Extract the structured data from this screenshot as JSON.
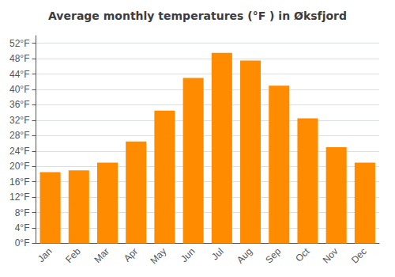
{
  "chart_data": {
    "type": "bar",
    "title": "Average monthly temperatures (°F ) in Øksfjord",
    "categories": [
      "Jan",
      "Feb",
      "Mar",
      "Apr",
      "May",
      "Jun",
      "Jul",
      "Aug",
      "Sep",
      "Oct",
      "Nov",
      "Dec"
    ],
    "values": [
      18.5,
      19.0,
      21.0,
      26.5,
      34.5,
      43.0,
      49.5,
      47.5,
      41.0,
      32.5,
      25.0,
      21.0
    ],
    "color": "#FF8C00",
    "ylim": [
      0,
      54
    ],
    "yticks": [
      {
        "value": 0,
        "label": "0°F"
      },
      {
        "value": 4,
        "label": "4°F"
      },
      {
        "value": 8,
        "label": "8°F"
      },
      {
        "value": 12,
        "label": "12°F"
      },
      {
        "value": 16,
        "label": "16°F"
      },
      {
        "value": 20,
        "label": "20°F"
      },
      {
        "value": 24,
        "label": "24°F"
      },
      {
        "value": 28,
        "label": "28°F"
      },
      {
        "value": 32,
        "label": "32°F"
      },
      {
        "value": 36,
        "label": "36°F"
      },
      {
        "value": 40,
        "label": "40°F"
      },
      {
        "value": 44,
        "label": "44°F"
      },
      {
        "value": 48,
        "label": "48°F"
      },
      {
        "value": 52,
        "label": "52°F"
      }
    ],
    "grid": true
  }
}
